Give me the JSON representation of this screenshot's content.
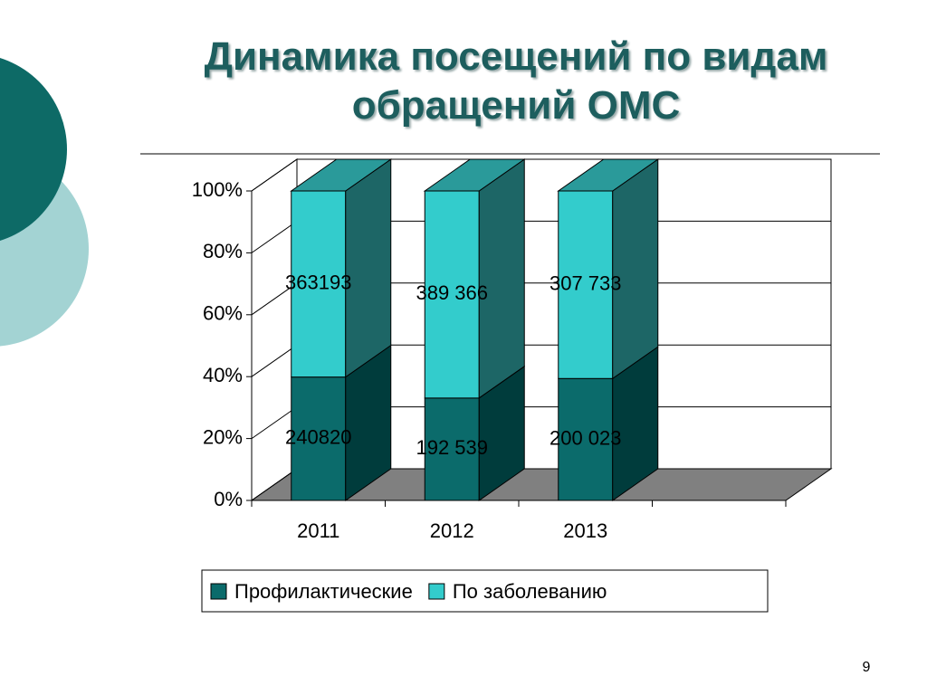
{
  "chart_data": {
    "type": "stacked_percent_bar_3d",
    "title": "Динамика посещений по видам обращений ОМС",
    "categories": [
      "2011",
      "2012",
      "2013"
    ],
    "series": [
      {
        "name": "Профилактические",
        "color": "#0b6b6b",
        "values": [
          240820,
          192539,
          200023
        ],
        "value_labels": [
          "240820",
          "192 539",
          "200 023"
        ]
      },
      {
        "name": "По заболеванию",
        "color": "#33cccc",
        "values": [
          363193,
          389366,
          307733
        ],
        "value_labels": [
          "363193",
          "389 366",
          "307 733"
        ]
      }
    ],
    "ylim": [
      0,
      100
    ],
    "yticks": [
      {
        "value": 0,
        "label": "0%"
      },
      {
        "value": 20,
        "label": "20%"
      },
      {
        "value": 40,
        "label": "40%"
      },
      {
        "value": 60,
        "label": "60%"
      },
      {
        "value": 80,
        "label": "80%"
      },
      {
        "value": 100,
        "label": "100%"
      }
    ],
    "grid": true,
    "legend": "bottom"
  },
  "page_number": "9"
}
